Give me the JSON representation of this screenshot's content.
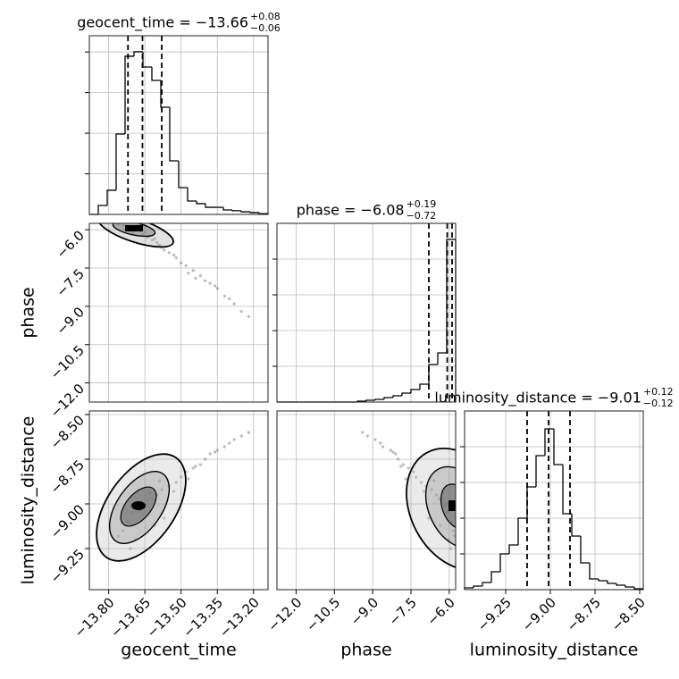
{
  "chart_data": {
    "type": "corner",
    "parameters": [
      {
        "label": "geocent_time",
        "title": "geocent_time = −13.66",
        "title_upper": "+0.08",
        "title_lower": "−0.06",
        "lim": [
          -13.88,
          -13.14
        ],
        "ticks": [
          {
            "value": -13.8,
            "label": "−13.80"
          },
          {
            "value": -13.65,
            "label": "−13.65"
          },
          {
            "value": -13.5,
            "label": "−13.50"
          },
          {
            "value": -13.35,
            "label": "−13.35"
          },
          {
            "value": -13.2,
            "label": "−13.20"
          }
        ],
        "bins": [
          -13.88,
          -13.843,
          -13.806,
          -13.769,
          -13.732,
          -13.695,
          -13.658,
          -13.621,
          -13.584,
          -13.547,
          -13.51,
          -13.473,
          -13.436,
          -13.399,
          -13.362,
          -13.325,
          -13.288,
          -13.251,
          -13.214,
          -13.177,
          -13.14
        ],
        "counts": [
          0,
          44,
          119,
          396,
          779,
          801,
          726,
          660,
          528,
          264,
          132,
          66,
          53,
          35,
          35,
          22,
          18,
          13,
          9,
          4
        ],
        "count_lim": [
          0,
          880
        ],
        "count_ticks": [
          200,
          400,
          600,
          800
        ],
        "quantiles": [
          -13.72,
          -13.66,
          -13.58
        ]
      },
      {
        "label": "phase",
        "title": "phase = −6.08",
        "title_upper": "+0.19",
        "title_lower": "−0.72",
        "lim": [
          -12.75,
          -5.75
        ],
        "ticks": [
          {
            "value": -12.0,
            "label": "−12.0"
          },
          {
            "value": -10.5,
            "label": "−10.5"
          },
          {
            "value": -9.0,
            "label": "−9.0"
          },
          {
            "value": -7.5,
            "label": "−7.5"
          },
          {
            "value": -6.0,
            "label": "−6.0"
          }
        ],
        "bins": [
          -12.75,
          -12.4,
          -12.05,
          -11.7,
          -11.35,
          -11.0,
          -10.65,
          -10.3,
          -9.95,
          -9.6,
          -9.25,
          -8.9,
          -8.55,
          -8.2,
          -7.85,
          -7.5,
          -7.15,
          -6.8,
          -6.45,
          -6.1,
          -5.75
        ],
        "counts": [
          0,
          0,
          0,
          0,
          0,
          0,
          0,
          0,
          0,
          5,
          10,
          15,
          25,
          35,
          50,
          70,
          100,
          210,
          275,
          910
        ],
        "count_lim": [
          0,
          1000
        ],
        "count_ticks": [
          200,
          400,
          600,
          800
        ],
        "quantiles": [
          -6.8,
          -6.08,
          -5.89
        ]
      },
      {
        "label": "luminosity_distance",
        "title": "luminosity_distance = −9.01",
        "title_upper": "+0.12",
        "title_lower": "−0.12",
        "lim": [
          -9.48,
          -8.48
        ],
        "ticks": [
          {
            "value": -9.25,
            "label": "−9.25"
          },
          {
            "value": -9.0,
            "label": "−9.00"
          },
          {
            "value": -8.75,
            "label": "−8.75"
          },
          {
            "value": -8.5,
            "label": "−8.50"
          }
        ],
        "bins": [
          -9.48,
          -9.43,
          -9.38,
          -9.33,
          -9.28,
          -9.23,
          -9.18,
          -9.13,
          -9.08,
          -9.03,
          -8.98,
          -8.93,
          -8.88,
          -8.83,
          -8.78,
          -8.73,
          -8.68,
          -8.63,
          -8.58,
          -8.53,
          -8.48
        ],
        "counts": [
          10,
          20,
          40,
          100,
          200,
          250,
          400,
          575,
          750,
          900,
          700,
          425,
          300,
          150,
          60,
          50,
          35,
          25,
          15,
          5
        ],
        "count_lim": [
          0,
          1000
        ],
        "count_ticks": [
          200,
          400,
          600,
          800
        ],
        "quantiles": [
          -9.13,
          -9.01,
          -8.89
        ]
      }
    ],
    "samples": {
      "geocent_time": [
        -13.7,
        -13.68,
        -13.66,
        -13.64,
        -13.72,
        -13.62,
        -13.6,
        -13.74,
        -13.65,
        -13.67,
        -13.58,
        -13.55,
        -13.52,
        -13.5,
        -13.48,
        -13.45,
        -13.42,
        -13.4,
        -13.38,
        -13.35,
        -13.32,
        -13.3,
        -13.28,
        -13.25,
        -13.22,
        -13.69,
        -13.63,
        -13.71,
        -13.57,
        -13.53,
        -13.47,
        -13.44,
        -13.76,
        -13.61,
        -13.59,
        -13.36
      ],
      "phase": [
        -6.1,
        -6.0,
        -6.2,
        -6.3,
        -5.9,
        -6.4,
        -6.5,
        -5.85,
        -6.1,
        -6.05,
        -6.7,
        -6.9,
        -7.1,
        -7.3,
        -7.4,
        -7.6,
        -7.8,
        -8.0,
        -8.1,
        -8.3,
        -8.6,
        -8.7,
        -8.9,
        -9.2,
        -9.4,
        -6.0,
        -6.25,
        -5.95,
        -6.8,
        -7.0,
        -7.7,
        -7.9,
        -5.8,
        -6.35,
        -6.6,
        -8.2
      ],
      "luminosity_distance": [
        -9.05,
        -9.02,
        -9.01,
        -8.98,
        -9.1,
        -8.97,
        -8.95,
        -9.15,
        -9.0,
        -9.04,
        -8.92,
        -8.9,
        -8.88,
        -8.85,
        -8.82,
        -8.8,
        -8.78,
        -8.75,
        -8.72,
        -8.7,
        -8.68,
        -8.66,
        -8.64,
        -8.62,
        -8.6,
        -9.2,
        -8.94,
        -9.25,
        -9.08,
        -8.93,
        -8.86,
        -8.79,
        -9.18,
        -9.12,
        -8.87,
        -8.71
      ]
    }
  }
}
